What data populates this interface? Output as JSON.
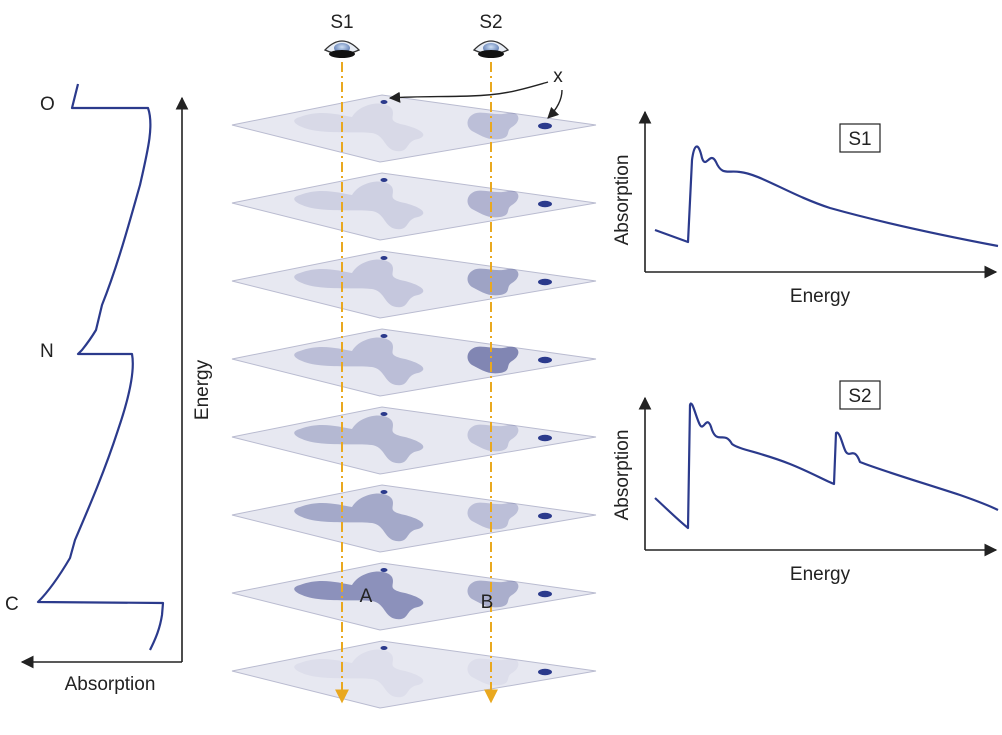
{
  "left_plot": {
    "edge_labels": [
      "O",
      "N",
      "C"
    ],
    "energy_label": "Energy",
    "absorption_label": "Absorption"
  },
  "stack": {
    "detector_labels": [
      "S1",
      "S2"
    ],
    "feature_label": "x",
    "region_labels": [
      "A",
      "B"
    ],
    "slice_count": 8,
    "colors": {
      "slice_fill": "#e7e8f1",
      "region_fill": "#6e74a8",
      "dot": "#2b3a8c",
      "beam": "#e9a81f"
    }
  },
  "spectra": [
    {
      "tag": "S1",
      "xlabel": "Energy",
      "ylabel": "Absorption"
    },
    {
      "tag": "S2",
      "xlabel": "Energy",
      "ylabel": "Absorption"
    }
  ]
}
